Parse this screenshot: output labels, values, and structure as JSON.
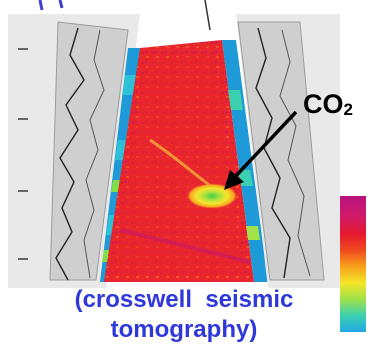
{
  "annotation": {
    "formula": "CO",
    "subscript": "2"
  },
  "caption": {
    "line1": "(crosswell  seismic",
    "line2": "tomography)"
  },
  "colorbar": {
    "colors": [
      "#22a7e6",
      "#3bd0b0",
      "#9ee24a",
      "#f5e629",
      "#f7a21b",
      "#f04a1e",
      "#e5192f",
      "#cf1a6a",
      "#b8127e"
    ]
  },
  "colors": {
    "caption": "#2f38d8",
    "tomogram": "#e8262c",
    "anomaly": "#f5e631",
    "log_track": "#d7d7d7",
    "log_curve": "#222222",
    "scale_stripe": "#1f9ad8"
  },
  "icons": {
    "arrow": "arrow-icon"
  }
}
